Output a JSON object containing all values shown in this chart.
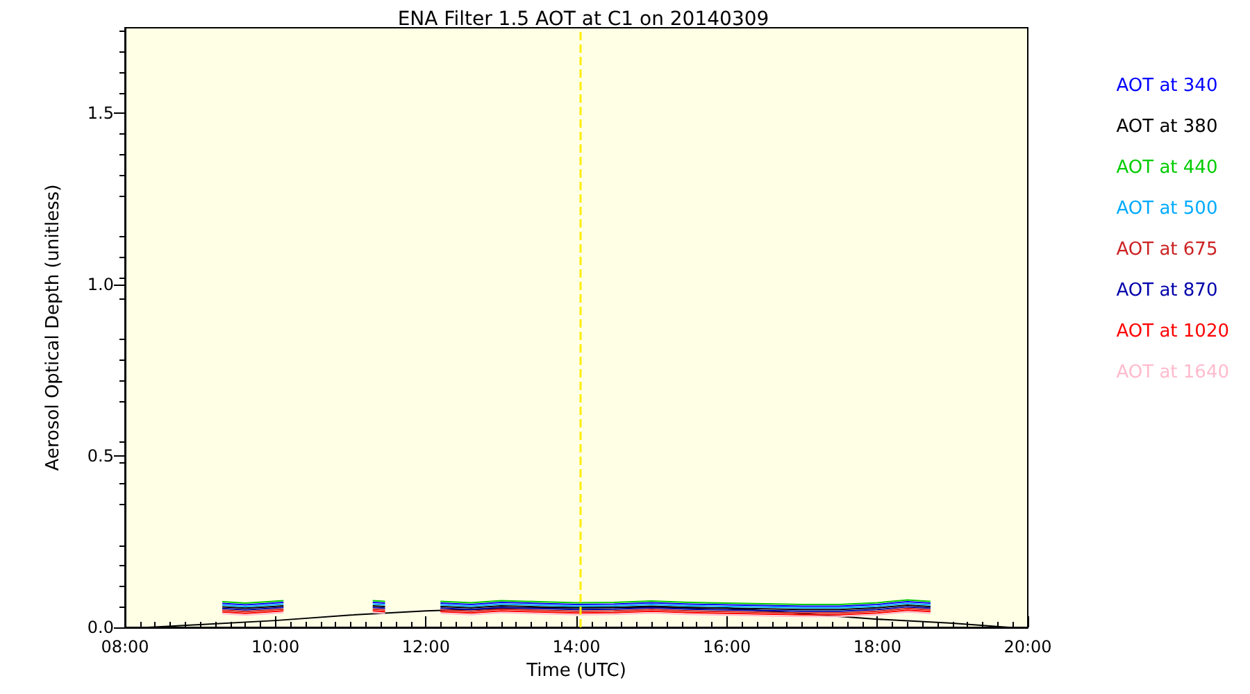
{
  "chart_data": {
    "type": "line",
    "title": "ENA Filter 1.5 AOT at C1 on 20140309",
    "xlabel": "Time (UTC)",
    "ylabel": "Aerosol Optical Depth (unitless)",
    "x": [
      9.3,
      9.6,
      9.9,
      10.1,
      10.6,
      11.3,
      11.45,
      11.8,
      12.2,
      12.6,
      13.0,
      13.5,
      14.0,
      14.5,
      15.0,
      15.5,
      16.0,
      16.5,
      17.0,
      17.5,
      18.0,
      18.4,
      18.7
    ],
    "series": [
      {
        "color": "#000000",
        "x": [
          8.3,
          9,
          10,
          11,
          12,
          13,
          14,
          15,
          16,
          17,
          18,
          19,
          19.75
        ],
        "values": [
          0,
          0.008,
          0.02,
          0.036,
          0.048,
          0.055,
          0.058,
          0.058,
          0.056,
          0.04,
          0.024,
          0.012,
          0
        ]
      },
      {
        "name": "AOT at 340",
        "color": "#0000ff",
        "values": [
          0.07,
          0.066,
          0.07,
          0.073,
          null,
          0.073,
          0.071,
          null,
          0.071,
          0.067,
          0.073,
          0.07,
          0.067,
          0.068,
          0.072,
          0.068,
          0.066,
          0.064,
          0.062,
          0.062,
          0.067,
          0.075,
          0.071
        ]
      },
      {
        "name": "AOT at 380",
        "color": "#000000",
        "values": [
          0.06,
          0.056,
          0.06,
          0.063,
          null,
          0.063,
          0.061,
          null,
          0.061,
          0.057,
          0.063,
          0.06,
          0.057,
          0.058,
          0.062,
          0.058,
          0.056,
          0.054,
          0.052,
          0.052,
          0.057,
          0.065,
          0.061
        ]
      },
      {
        "name": "AOT at 440",
        "color": "#00cc00",
        "values": [
          0.075,
          0.071,
          0.075,
          0.078,
          null,
          0.078,
          0.076,
          null,
          0.076,
          0.072,
          0.078,
          0.075,
          0.072,
          0.073,
          0.077,
          0.073,
          0.071,
          0.069,
          0.067,
          0.067,
          0.072,
          0.08,
          0.076
        ]
      },
      {
        "name": "AOT at 500",
        "color": "#00aaff",
        "values": [
          0.065,
          0.061,
          0.065,
          0.068,
          null,
          0.068,
          0.066,
          null,
          0.066,
          0.062,
          0.068,
          0.065,
          0.062,
          0.063,
          0.067,
          0.063,
          0.061,
          0.059,
          0.057,
          0.057,
          0.062,
          0.07,
          0.066
        ]
      },
      {
        "name": "AOT at 675",
        "color": "#cc2222",
        "values": [
          0.05,
          0.046,
          0.05,
          0.053,
          null,
          0.053,
          0.051,
          null,
          0.051,
          0.047,
          0.053,
          0.05,
          0.047,
          0.048,
          0.052,
          0.048,
          0.046,
          0.044,
          0.042,
          0.042,
          0.047,
          0.055,
          0.051
        ]
      },
      {
        "name": "AOT at 870",
        "color": "#0000aa",
        "values": [
          0.055,
          0.051,
          0.055,
          0.058,
          null,
          0.058,
          0.056,
          null,
          0.056,
          0.052,
          0.058,
          0.055,
          0.052,
          0.053,
          0.057,
          0.053,
          0.051,
          0.049,
          0.047,
          0.047,
          0.052,
          0.06,
          0.056
        ]
      },
      {
        "name": "AOT at 1020",
        "color": "#ff0000",
        "values": [
          0.045,
          0.041,
          0.045,
          0.048,
          null,
          0.048,
          0.046,
          null,
          0.046,
          0.042,
          0.048,
          0.045,
          0.042,
          0.043,
          0.047,
          0.043,
          0.041,
          0.039,
          0.037,
          0.037,
          0.042,
          0.05,
          0.046
        ]
      },
      {
        "name": "AOT at 1640",
        "color": "#ffbbcc",
        "values": [
          0.04,
          0.036,
          0.04,
          0.043,
          null,
          0.043,
          0.041,
          null,
          0.041,
          0.037,
          0.043,
          0.04,
          0.037,
          0.038,
          0.042,
          0.038,
          0.036,
          0.034,
          0.032,
          0.032,
          0.037,
          0.045,
          0.041
        ]
      }
    ],
    "xlim": [
      8,
      20
    ],
    "xticks": [
      {
        "value": 8,
        "label": "08:00"
      },
      {
        "value": 10,
        "label": "10:00"
      },
      {
        "value": 12,
        "label": "12:00"
      },
      {
        "value": 14,
        "label": "14:00"
      },
      {
        "value": 16,
        "label": "16:00"
      },
      {
        "value": 18,
        "label": "18:00"
      },
      {
        "value": 20,
        "label": "20:00"
      }
    ],
    "ylim": [
      0,
      1.75
    ],
    "yticks": [
      {
        "value": 0,
        "label": "0.0"
      },
      {
        "value": 0.5,
        "label": "0.5"
      },
      {
        "value": 1,
        "label": "1.0"
      },
      {
        "value": 1.5,
        "label": "1.5"
      }
    ],
    "ref_lines": [
      {
        "axis": "x",
        "value": 14.05,
        "color": "#ffee00",
        "line_style": "dashed"
      }
    ],
    "legend": "right",
    "grid": false,
    "marker": "none",
    "line_style": "solid"
  }
}
